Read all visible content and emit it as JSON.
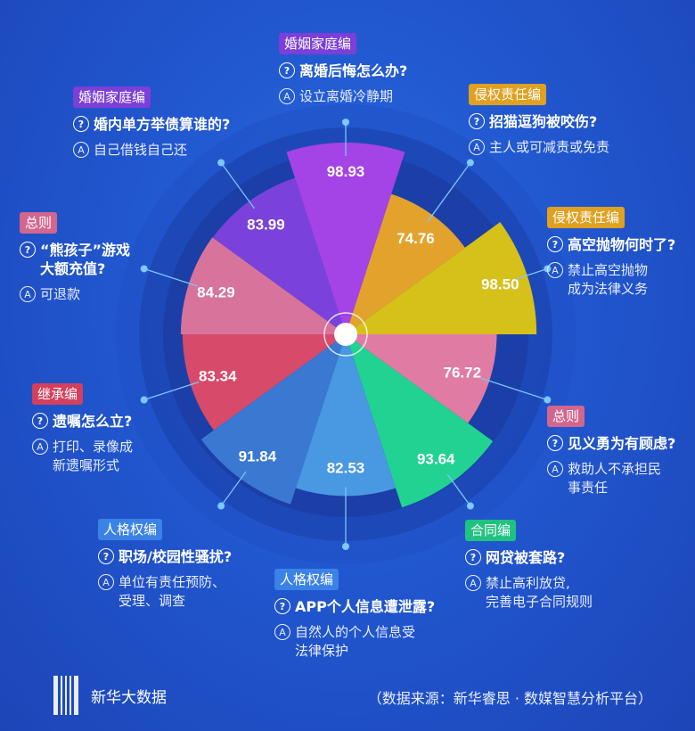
{
  "chart_data": {
    "type": "rose",
    "start_angle_deg": -18,
    "colors": {
      "婚姻家庭编": "#7c3fd8",
      "侵权责任编": "#e0a020",
      "总则": "#d2668e",
      "继承编": "#d4405c",
      "人格权编": "#3b82e6",
      "合同编": "#1fc27f"
    },
    "items": [
      {
        "value": 98.93,
        "value_label": "98.93",
        "color": "#a443e6",
        "category": "婚姻家庭编",
        "question": [
          "离婚后悔怎么办?"
        ],
        "answer": [
          "设立离婚冷静期"
        ]
      },
      {
        "value": 74.76,
        "value_label": "74.76",
        "color": "#e3a22c",
        "category": "侵权责任编",
        "question": [
          "招猫逗狗被咬伤?"
        ],
        "answer": [
          "主人或可减责或免责"
        ]
      },
      {
        "value": 98.5,
        "value_label": "98.50",
        "color": "#d6c01a",
        "category": "侵权责任编",
        "question": [
          "高空抛物何时了?"
        ],
        "answer": [
          "禁止高空抛物",
          "成为法律义务"
        ]
      },
      {
        "value": 76.72,
        "value_label": "76.72",
        "color": "#e07ca4",
        "category": "总则",
        "question": [
          "见义勇为有顾虑?"
        ],
        "answer": [
          "救助人不承担民",
          "事责任"
        ]
      },
      {
        "value": 93.64,
        "value_label": "93.64",
        "color": "#22d292",
        "category": "合同编",
        "question": [
          "网贷被套路?"
        ],
        "answer": [
          "禁止高利放贷,",
          "完善电子合同规则"
        ]
      },
      {
        "value": 82.53,
        "value_label": "82.53",
        "color": "#4898e2",
        "category": "人格权编",
        "question": [
          "APP个人信息遭泄露?"
        ],
        "answer": [
          "自然人的个人信息受",
          "法律保护"
        ]
      },
      {
        "value": 91.84,
        "value_label": "91.84",
        "color": "#3a78d2",
        "category": "人格权编",
        "question": [
          "职场/校园性骚扰?"
        ],
        "answer": [
          "单位有责任预防、",
          "受理、调查"
        ]
      },
      {
        "value": 83.34,
        "value_label": "83.34",
        "color": "#d84a6a",
        "category": "继承编",
        "question": [
          "遗嘱怎么立?"
        ],
        "answer": [
          "打印、录像成",
          "新遗嘱形式"
        ]
      },
      {
        "value": 84.29,
        "value_label": "84.29",
        "color": "#d8739c",
        "category": "总则",
        "question": [
          "“熊孩子”游戏",
          "大额充值?"
        ],
        "answer": [
          "可退款"
        ]
      },
      {
        "value": 83.99,
        "value_label": "83.99",
        "color": "#7a42da",
        "category": "婚姻家庭编",
        "question": [
          "婚内单方举债算谁的?"
        ],
        "answer": [
          "自己借钱自己还"
        ]
      }
    ]
  },
  "icons": {
    "question": "?",
    "answer": "A"
  },
  "footer": {
    "brand": "新华大数据",
    "source": "（数据来源：新华睿思 · 数媒智慧分析平台）"
  }
}
